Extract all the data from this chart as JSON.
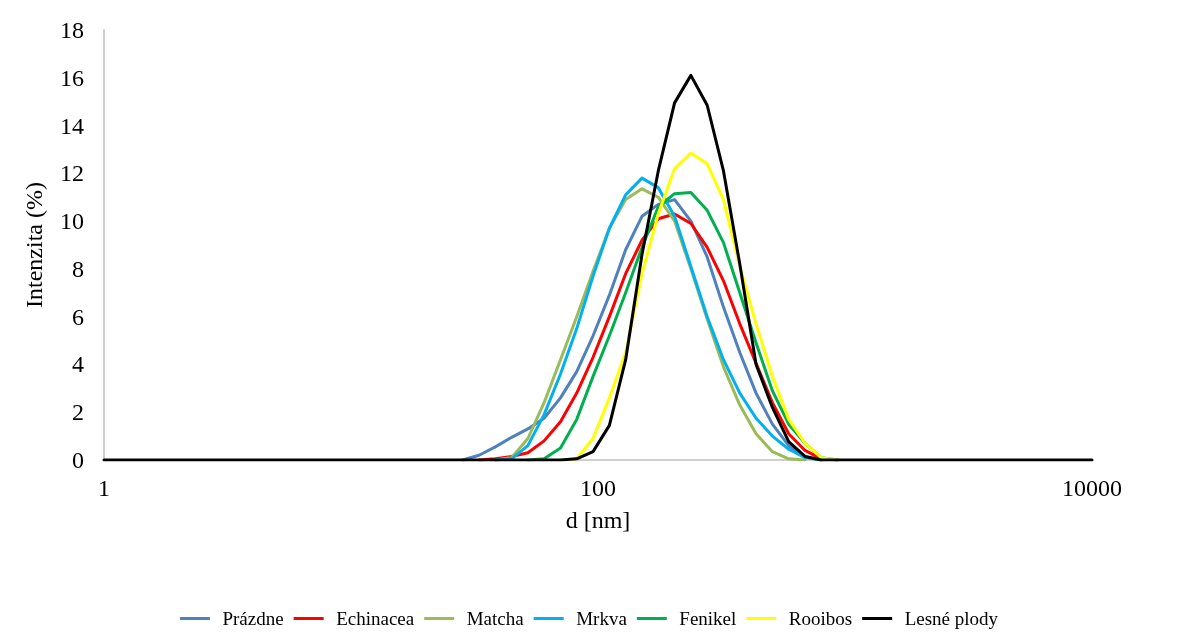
{
  "chart_data": {
    "type": "line",
    "xlabel": "d [nm]",
    "ylabel": "Intenzita (%)",
    "x": [
      1,
      28.3,
      33.0,
      38.4,
      44.7,
      52.0,
      60.5,
      70.5,
      82.0,
      95.5,
      111.2,
      129.4,
      150.7,
      175.4,
      204.2,
      237.7,
      276.7,
      322.1,
      375.0,
      436.5,
      508.2,
      591.6,
      688.7,
      801.7,
      933.3,
      10000
    ],
    "xlim": [
      1,
      10000
    ],
    "xticks": [
      1,
      100,
      10000
    ],
    "log": "x",
    "ylim": [
      0,
      18
    ],
    "yticks": [
      0,
      2,
      4,
      6,
      8,
      10,
      12,
      14,
      16,
      18
    ],
    "grid": false,
    "legend": "bottom",
    "marker": "none",
    "line_style": "solid",
    "series": [
      {
        "name": "Prázdne",
        "color": "#4f81bd",
        "x": [
          28.3,
          33.0,
          38.4,
          44.7,
          52.0,
          60.5,
          70.5,
          82.0,
          95.5,
          111.2,
          129.4,
          150.7,
          175.4,
          204.2,
          237.7,
          276.7,
          322.1,
          375.0,
          436.5,
          508.2,
          591.6,
          688.7,
          801.7
        ],
        "values": [
          0,
          0.2,
          0.55,
          0.95,
          1.3,
          1.75,
          2.6,
          3.7,
          5.2,
          6.9,
          8.8,
          10.2,
          10.7,
          10.9,
          10.0,
          8.5,
          6.4,
          4.5,
          2.8,
          1.5,
          0.6,
          0.15,
          0
        ]
      },
      {
        "name": "Echinacea",
        "color": "#ff0000",
        "x": [
          33.0,
          38.4,
          44.7,
          52.0,
          60.5,
          70.5,
          82.0,
          95.5,
          111.2,
          129.4,
          150.7,
          175.4,
          204.2,
          237.7,
          276.7,
          322.1,
          375.0,
          436.5,
          508.2,
          591.6,
          688.7,
          801.7,
          933.3
        ],
        "values": [
          0,
          0.05,
          0.15,
          0.3,
          0.8,
          1.6,
          2.8,
          4.3,
          6.0,
          7.8,
          9.2,
          10.1,
          10.3,
          9.9,
          8.9,
          7.5,
          5.7,
          4.05,
          2.4,
          1.1,
          0.4,
          0.05,
          0
        ]
      },
      {
        "name": "Matcha",
        "color": "#9bbb59",
        "x": [
          38.4,
          44.7,
          52.0,
          60.5,
          70.5,
          82.0,
          95.5,
          111.2,
          129.4,
          150.7,
          175.4,
          204.2,
          237.7,
          276.7,
          322.1,
          375.0,
          436.5,
          508.2,
          591.6,
          688.7
        ],
        "values": [
          0,
          0.1,
          0.9,
          2.4,
          4.2,
          6.0,
          7.9,
          9.7,
          10.9,
          11.35,
          11.0,
          10.0,
          8.0,
          5.9,
          3.9,
          2.3,
          1.1,
          0.35,
          0.05,
          0
        ]
      },
      {
        "name": "Mrkva",
        "color": "#00b0f0",
        "x": [
          38.4,
          44.7,
          52.0,
          60.5,
          70.5,
          82.0,
          95.5,
          111.2,
          129.4,
          150.7,
          175.4,
          204.2,
          237.7,
          276.7,
          322.1,
          375.0,
          436.5,
          508.2,
          591.6,
          688.7,
          801.7
        ],
        "values": [
          0,
          0.05,
          0.6,
          1.9,
          3.6,
          5.5,
          7.7,
          9.7,
          11.1,
          11.8,
          11.4,
          10.2,
          8.1,
          6.0,
          4.2,
          2.8,
          1.75,
          1.0,
          0.45,
          0.1,
          0
        ]
      },
      {
        "name": "Fenikel",
        "color": "#00b050",
        "x": [
          52.0,
          60.5,
          70.5,
          82.0,
          95.5,
          111.2,
          129.4,
          150.7,
          175.4,
          204.2,
          237.7,
          276.7,
          322.1,
          375.0,
          436.5,
          508.2,
          591.6,
          688.7,
          801.7,
          933.3
        ],
        "values": [
          0,
          0.05,
          0.5,
          1.7,
          3.5,
          5.2,
          7.0,
          8.9,
          10.6,
          11.15,
          11.2,
          10.45,
          9.1,
          7.0,
          4.9,
          2.9,
          1.5,
          0.7,
          0.1,
          0
        ]
      },
      {
        "name": "Rooibos",
        "color": "#ffff00",
        "x": [
          70.5,
          82.0,
          95.5,
          111.2,
          129.4,
          150.7,
          175.4,
          204.2,
          237.7,
          276.7,
          322.1,
          375.0,
          436.5,
          508.2,
          591.6,
          688.7,
          801.7,
          933.3
        ],
        "values": [
          0,
          0.05,
          0.9,
          2.6,
          4.5,
          7.8,
          10.3,
          12.2,
          12.85,
          12.4,
          10.9,
          8.1,
          5.7,
          3.5,
          1.7,
          0.7,
          0.1,
          0
        ]
      },
      {
        "name": "Lesné plody",
        "color": "#000000",
        "values": [
          0,
          0,
          0,
          0,
          0,
          0,
          0,
          0,
          0.05,
          0.35,
          1.45,
          4.2,
          8.6,
          12.1,
          14.95,
          16.1,
          14.85,
          12.1,
          8.2,
          4.0,
          2.2,
          0.77,
          0.15,
          0,
          0,
          0
        ]
      }
    ]
  }
}
